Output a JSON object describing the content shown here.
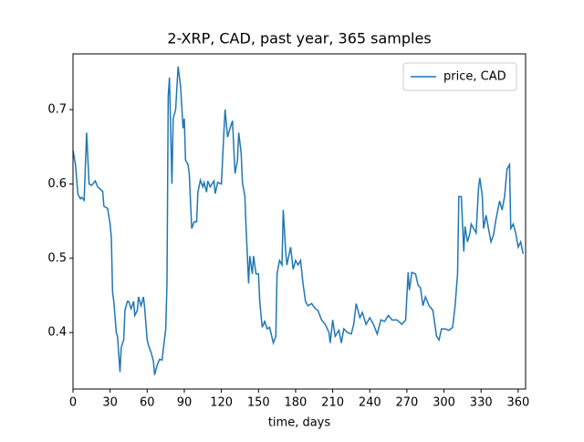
{
  "chart_data": {
    "type": "line",
    "title": "2-XRP, CAD, past year, 365 samples",
    "x_label": "time, days",
    "xlim": [
      0,
      366
    ],
    "ylim": [
      0.324,
      0.775
    ],
    "xticks": [
      0,
      30,
      60,
      90,
      120,
      150,
      180,
      210,
      240,
      270,
      300,
      330,
      360
    ],
    "yticks": [
      0.4,
      0.5,
      0.6,
      0.7
    ],
    "legend": "upper right",
    "series": [
      {
        "name": "price, CAD",
        "color": "#1f77b4",
        "x": [
          0,
          2,
          4,
          6,
          7,
          9,
          11,
          13,
          15,
          18,
          20,
          24,
          25,
          28,
          30,
          31,
          32,
          33,
          35,
          36,
          38,
          39,
          41,
          42,
          44,
          45,
          47,
          49,
          50,
          52,
          53,
          55,
          57,
          58,
          60,
          61,
          63,
          65,
          66,
          68,
          70,
          72,
          75,
          76,
          77,
          78,
          80,
          81,
          83,
          85,
          87,
          89,
          90,
          91,
          93,
          94,
          96,
          98,
          100,
          101,
          103,
          105,
          106,
          108,
          109,
          111,
          114,
          115,
          117,
          120,
          122,
          123,
          125,
          127,
          129,
          131,
          133,
          134,
          136,
          137,
          139,
          140,
          142,
          143,
          145,
          146,
          148,
          150,
          151,
          153,
          155,
          157,
          159,
          162,
          164,
          165,
          167,
          169,
          170,
          172,
          173,
          176,
          178,
          180,
          182,
          184,
          186,
          188,
          190,
          193,
          196,
          198,
          201,
          204,
          207,
          208,
          210,
          212,
          215,
          217,
          219,
          222,
          225,
          227,
          229,
          232,
          234,
          237,
          240,
          243,
          246,
          249,
          252,
          255,
          258,
          262,
          266,
          269,
          271,
          272,
          274,
          277,
          279,
          281,
          283,
          285,
          288,
          291,
          294,
          296,
          298,
          301,
          304,
          307,
          309,
          311,
          312,
          314,
          316,
          317,
          319,
          321,
          322,
          324,
          326,
          328,
          329,
          331,
          332,
          334,
          336,
          338,
          340,
          342,
          345,
          347,
          349,
          351,
          353,
          354,
          356,
          358,
          360,
          362,
          364
        ],
        "values": [
          0.645,
          0.626,
          0.586,
          0.58,
          0.582,
          0.578,
          0.669,
          0.6,
          0.598,
          0.604,
          0.596,
          0.59,
          0.57,
          0.567,
          0.546,
          0.528,
          0.454,
          0.442,
          0.4,
          0.395,
          0.347,
          0.38,
          0.39,
          0.43,
          0.442,
          0.442,
          0.432,
          0.442,
          0.423,
          0.43,
          0.448,
          0.436,
          0.448,
          0.432,
          0.39,
          0.383,
          0.374,
          0.362,
          0.343,
          0.356,
          0.364,
          0.363,
          0.405,
          0.466,
          0.718,
          0.743,
          0.6,
          0.688,
          0.7,
          0.758,
          0.731,
          0.675,
          0.688,
          0.632,
          0.626,
          0.614,
          0.54,
          0.549,
          0.549,
          0.589,
          0.605,
          0.596,
          0.602,
          0.589,
          0.604,
          0.596,
          0.604,
          0.587,
          0.602,
          0.6,
          0.669,
          0.7,
          0.663,
          0.675,
          0.685,
          0.614,
          0.632,
          0.669,
          0.641,
          0.602,
          0.583,
          0.54,
          0.466,
          0.503,
          0.479,
          0.503,
          0.479,
          0.479,
          0.442,
          0.407,
          0.415,
          0.405,
          0.407,
          0.386,
          0.395,
          0.479,
          0.497,
          0.491,
          0.565,
          0.509,
          0.491,
          0.515,
          0.485,
          0.497,
          0.491,
          0.497,
          0.466,
          0.442,
          0.436,
          0.439,
          0.432,
          0.43,
          0.417,
          0.411,
          0.4,
          0.386,
          0.417,
          0.395,
          0.403,
          0.386,
          0.405,
          0.4,
          0.398,
          0.411,
          0.439,
          0.42,
          0.427,
          0.411,
          0.42,
          0.411,
          0.398,
          0.417,
          0.415,
          0.423,
          0.417,
          0.417,
          0.411,
          0.417,
          0.481,
          0.457,
          0.481,
          0.479,
          0.464,
          0.46,
          0.436,
          0.448,
          0.436,
          0.43,
          0.395,
          0.39,
          0.405,
          0.405,
          0.403,
          0.407,
          0.436,
          0.479,
          0.583,
          0.583,
          0.509,
          0.543,
          0.522,
          0.534,
          0.546,
          0.54,
          0.534,
          0.596,
          0.608,
          0.583,
          0.54,
          0.558,
          0.54,
          0.522,
          0.531,
          0.552,
          0.577,
          0.565,
          0.583,
          0.62,
          0.626,
          0.54,
          0.546,
          0.534,
          0.515,
          0.522,
          0.506
        ]
      }
    ]
  }
}
